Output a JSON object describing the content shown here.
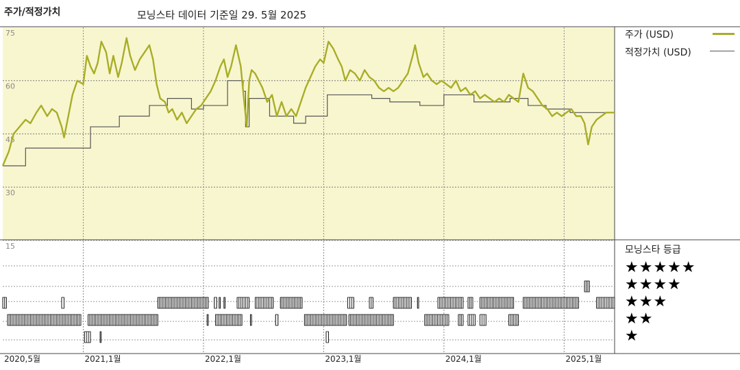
{
  "header": {
    "title": "주가/적정가치",
    "subtitle": "모닝스타 데이터 기준일 29. 5월 2025"
  },
  "legend": {
    "price_label": "주가 (USD)",
    "fair_label": "적정가치 (USD)"
  },
  "rating": {
    "title": "모닝스타 등급",
    "stars5": "★★★★★",
    "stars4": "★★★★",
    "stars3": "★★★",
    "stars2": "★★",
    "stars1": "★"
  },
  "colors": {
    "price": "#a8ad27",
    "fair": "#555555",
    "plot_bg": "#f8f6cf"
  },
  "chart_data": {
    "type": "line",
    "x_labels": [
      "2020,5월",
      "2021,1월",
      "2022,1월",
      "2023,1월",
      "2024,1월",
      "2025,1월"
    ],
    "x_label_dates": [
      2020.33,
      2021.0,
      2022.0,
      2023.0,
      2024.0,
      2025.0
    ],
    "x_range": [
      2020.33,
      2025.42
    ],
    "y_ticks": [
      "75",
      "60",
      "45",
      "30",
      "15"
    ],
    "ylim": [
      15,
      75
    ],
    "series": [
      {
        "name": "주가 (USD)",
        "points": [
          [
            2020.33,
            36
          ],
          [
            2020.38,
            40
          ],
          [
            2020.42,
            45
          ],
          [
            2020.47,
            47
          ],
          [
            2020.52,
            49
          ],
          [
            2020.56,
            48
          ],
          [
            2020.61,
            51
          ],
          [
            2020.65,
            53
          ],
          [
            2020.7,
            50
          ],
          [
            2020.74,
            52
          ],
          [
            2020.78,
            51
          ],
          [
            2020.82,
            47
          ],
          [
            2020.84,
            44
          ],
          [
            2020.87,
            49
          ],
          [
            2020.91,
            56
          ],
          [
            2020.95,
            60
          ],
          [
            2021.0,
            59
          ],
          [
            2021.03,
            67
          ],
          [
            2021.06,
            64
          ],
          [
            2021.09,
            62
          ],
          [
            2021.12,
            65
          ],
          [
            2021.15,
            71
          ],
          [
            2021.19,
            68
          ],
          [
            2021.22,
            62
          ],
          [
            2021.25,
            67
          ],
          [
            2021.29,
            61
          ],
          [
            2021.32,
            65
          ],
          [
            2021.36,
            72
          ],
          [
            2021.39,
            67
          ],
          [
            2021.43,
            63
          ],
          [
            2021.47,
            66
          ],
          [
            2021.51,
            68
          ],
          [
            2021.55,
            70
          ],
          [
            2021.58,
            66
          ],
          [
            2021.61,
            59
          ],
          [
            2021.64,
            55
          ],
          [
            2021.68,
            54
          ],
          [
            2021.71,
            51
          ],
          [
            2021.74,
            52
          ],
          [
            2021.78,
            49
          ],
          [
            2021.82,
            51
          ],
          [
            2021.86,
            48
          ],
          [
            2021.9,
            50
          ],
          [
            2021.94,
            52
          ],
          [
            2021.98,
            53
          ],
          [
            2022.02,
            55
          ],
          [
            2022.06,
            57
          ],
          [
            2022.1,
            60
          ],
          [
            2022.14,
            64
          ],
          [
            2022.17,
            66
          ],
          [
            2022.2,
            61
          ],
          [
            2022.23,
            64
          ],
          [
            2022.27,
            70
          ],
          [
            2022.31,
            64
          ],
          [
            2022.33,
            57
          ],
          [
            2022.36,
            47
          ],
          [
            2022.38,
            60
          ],
          [
            2022.4,
            63
          ],
          [
            2022.43,
            62
          ],
          [
            2022.46,
            60
          ],
          [
            2022.49,
            58
          ],
          [
            2022.53,
            54
          ],
          [
            2022.57,
            56
          ],
          [
            2022.61,
            50
          ],
          [
            2022.65,
            54
          ],
          [
            2022.69,
            50
          ],
          [
            2022.73,
            52
          ],
          [
            2022.77,
            50
          ],
          [
            2022.81,
            54
          ],
          [
            2022.85,
            58
          ],
          [
            2022.89,
            61
          ],
          [
            2022.93,
            64
          ],
          [
            2022.97,
            66
          ],
          [
            2023.0,
            65
          ],
          [
            2023.04,
            71
          ],
          [
            2023.08,
            69
          ],
          [
            2023.12,
            66
          ],
          [
            2023.15,
            64
          ],
          [
            2023.18,
            60
          ],
          [
            2023.22,
            63
          ],
          [
            2023.26,
            62
          ],
          [
            2023.3,
            60
          ],
          [
            2023.34,
            63
          ],
          [
            2023.38,
            61
          ],
          [
            2023.42,
            60
          ],
          [
            2023.46,
            58
          ],
          [
            2023.5,
            57
          ],
          [
            2023.54,
            58
          ],
          [
            2023.58,
            57
          ],
          [
            2023.62,
            58
          ],
          [
            2023.66,
            60
          ],
          [
            2023.7,
            62
          ],
          [
            2023.74,
            67
          ],
          [
            2023.76,
            70
          ],
          [
            2023.79,
            65
          ],
          [
            2023.83,
            61
          ],
          [
            2023.86,
            62
          ],
          [
            2023.9,
            60
          ],
          [
            2023.94,
            59
          ],
          [
            2023.98,
            60
          ],
          [
            2024.02,
            59
          ],
          [
            2024.06,
            58
          ],
          [
            2024.1,
            60
          ],
          [
            2024.14,
            57
          ],
          [
            2024.18,
            58
          ],
          [
            2024.22,
            56
          ],
          [
            2024.26,
            57
          ],
          [
            2024.3,
            55
          ],
          [
            2024.34,
            56
          ],
          [
            2024.38,
            55
          ],
          [
            2024.42,
            54
          ],
          [
            2024.46,
            55
          ],
          [
            2024.5,
            54
          ],
          [
            2024.54,
            56
          ],
          [
            2024.58,
            55
          ],
          [
            2024.62,
            54
          ],
          [
            2024.66,
            62
          ],
          [
            2024.7,
            58
          ],
          [
            2024.74,
            57
          ],
          [
            2024.78,
            55
          ],
          [
            2024.82,
            53
          ],
          [
            2024.86,
            52
          ],
          [
            2024.9,
            50
          ],
          [
            2024.94,
            51
          ],
          [
            2024.98,
            50
          ],
          [
            2025.02,
            51
          ],
          [
            2025.06,
            52
          ],
          [
            2025.1,
            50
          ],
          [
            2025.14,
            50
          ],
          [
            2025.17,
            48
          ],
          [
            2025.2,
            42
          ],
          [
            2025.23,
            47
          ],
          [
            2025.27,
            49
          ],
          [
            2025.31,
            50
          ],
          [
            2025.35,
            51
          ],
          [
            2025.39,
            51
          ],
          [
            2025.42,
            51
          ]
        ]
      },
      {
        "name": "적정가치 (USD)",
        "steps": [
          [
            2020.33,
            36
          ],
          [
            2020.52,
            41
          ],
          [
            2020.88,
            41
          ],
          [
            2021.06,
            47
          ],
          [
            2021.3,
            50
          ],
          [
            2021.55,
            53
          ],
          [
            2021.7,
            55
          ],
          [
            2021.9,
            52
          ],
          [
            2022.0,
            53
          ],
          [
            2022.2,
            60
          ],
          [
            2022.33,
            57
          ],
          [
            2022.35,
            47
          ],
          [
            2022.38,
            55
          ],
          [
            2022.4,
            55
          ],
          [
            2022.55,
            50
          ],
          [
            2022.75,
            48
          ],
          [
            2022.85,
            50
          ],
          [
            2023.03,
            56
          ],
          [
            2023.4,
            55
          ],
          [
            2023.55,
            54
          ],
          [
            2023.8,
            53
          ],
          [
            2024.0,
            56
          ],
          [
            2024.25,
            54
          ],
          [
            2024.4,
            54
          ],
          [
            2024.55,
            55
          ],
          [
            2024.7,
            53
          ],
          [
            2024.85,
            52
          ],
          [
            2025.05,
            51
          ],
          [
            2025.2,
            51
          ]
        ]
      }
    ],
    "rating_history": {
      "levels": [
        5,
        4,
        3,
        2,
        1
      ],
      "segments": [
        {
          "level": 4,
          "from": 2025.17,
          "to": 2025.21
        },
        {
          "level": 3,
          "from": 2020.33,
          "to": 2020.36
        },
        {
          "level": 3,
          "from": 2020.82,
          "to": 2020.84
        },
        {
          "level": 3,
          "from": 2021.62,
          "to": 2022.04
        },
        {
          "level": 3,
          "from": 2022.09,
          "to": 2022.11
        },
        {
          "level": 3,
          "from": 2022.13,
          "to": 2022.14
        },
        {
          "level": 3,
          "from": 2022.17,
          "to": 2022.18
        },
        {
          "level": 3,
          "from": 2022.28,
          "to": 2022.38
        },
        {
          "level": 3,
          "from": 2022.43,
          "to": 2022.58
        },
        {
          "level": 3,
          "from": 2022.64,
          "to": 2022.82
        },
        {
          "level": 3,
          "from": 2023.2,
          "to": 2023.25
        },
        {
          "level": 3,
          "from": 2023.38,
          "to": 2023.41
        },
        {
          "level": 3,
          "from": 2023.58,
          "to": 2023.73
        },
        {
          "level": 3,
          "from": 2023.78,
          "to": 2023.79
        },
        {
          "level": 3,
          "from": 2023.95,
          "to": 2024.16
        },
        {
          "level": 3,
          "from": 2024.2,
          "to": 2024.24
        },
        {
          "level": 3,
          "from": 2024.3,
          "to": 2024.58
        },
        {
          "level": 3,
          "from": 2024.66,
          "to": 2025.12
        },
        {
          "level": 3,
          "from": 2025.27,
          "to": 2025.42
        },
        {
          "level": 2,
          "from": 2020.37,
          "to": 2020.98
        },
        {
          "level": 2,
          "from": 2021.04,
          "to": 2021.62
        },
        {
          "level": 2,
          "from": 2022.03,
          "to": 2022.04
        },
        {
          "level": 2,
          "from": 2022.1,
          "to": 2022.32
        },
        {
          "level": 2,
          "from": 2022.39,
          "to": 2022.4
        },
        {
          "level": 2,
          "from": 2022.6,
          "to": 2022.62
        },
        {
          "level": 2,
          "from": 2022.84,
          "to": 2023.19
        },
        {
          "level": 2,
          "from": 2023.21,
          "to": 2023.58
        },
        {
          "level": 2,
          "from": 2023.84,
          "to": 2024.04
        },
        {
          "level": 2,
          "from": 2024.12,
          "to": 2024.16
        },
        {
          "level": 2,
          "from": 2024.2,
          "to": 2024.26
        },
        {
          "level": 2,
          "from": 2024.3,
          "to": 2024.35
        },
        {
          "level": 2,
          "from": 2024.54,
          "to": 2024.62
        },
        {
          "level": 1,
          "from": 2021.01,
          "to": 2021.06
        },
        {
          "level": 1,
          "from": 2021.14,
          "to": 2021.145
        },
        {
          "level": 1,
          "from": 2023.02,
          "to": 2023.04
        }
      ]
    }
  }
}
